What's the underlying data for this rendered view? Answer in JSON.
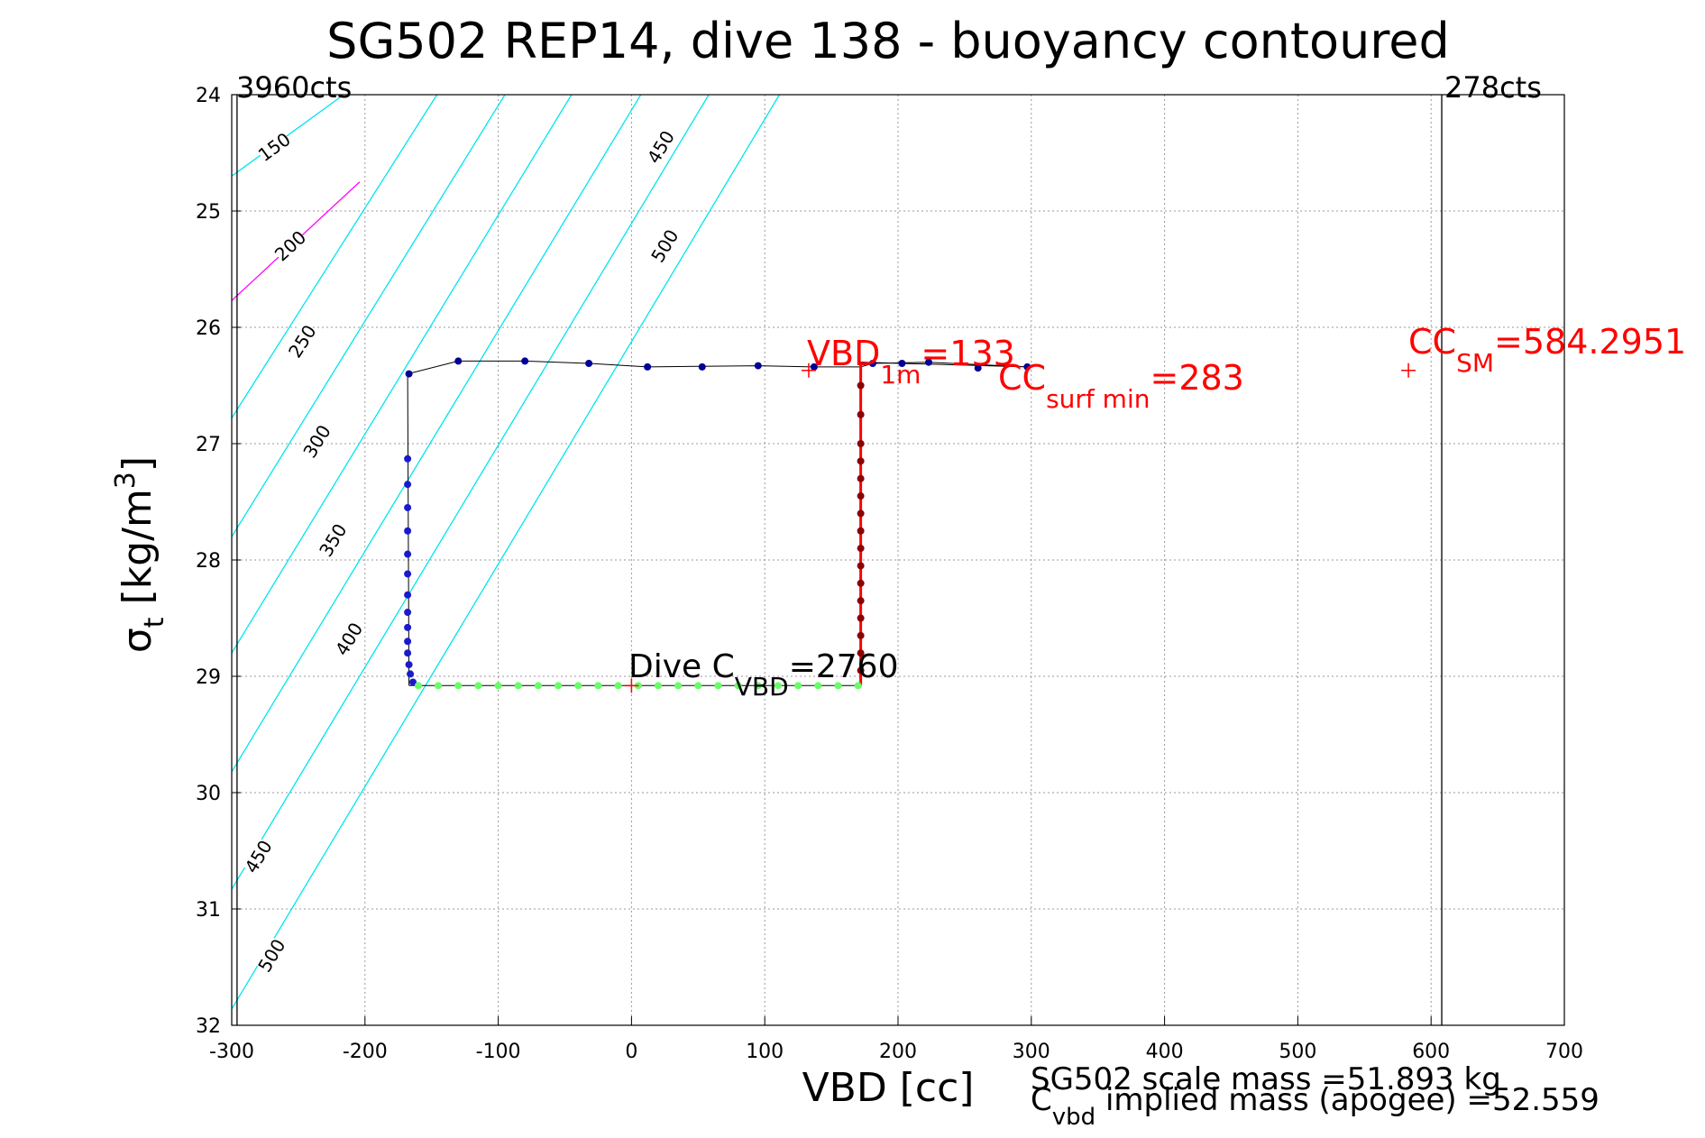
{
  "chart_data": {
    "type": "scatter",
    "title": "SG502 REP14, dive 138 - buoyancy contoured",
    "xlabel": "VBD [cc]",
    "ylabel": {
      "base": "σ",
      "sub": "t",
      "unit_pre": " [kg/m",
      "sup": "3",
      "unit_post": "]"
    },
    "xlim": [
      -300,
      700
    ],
    "ylim": [
      24,
      32
    ],
    "y_reversed": true,
    "grid": true,
    "x_ticks": [
      -300,
      -200,
      -100,
      0,
      100,
      200,
      300,
      400,
      500,
      600,
      700
    ],
    "y_ticks": [
      24,
      25,
      26,
      27,
      28,
      29,
      30,
      31,
      32
    ],
    "vbd_limits": {
      "min": {
        "vbd": -296,
        "label": "3960cts"
      },
      "max": {
        "vbd": 608,
        "label": "278cts"
      }
    },
    "contours": [
      {
        "label": "150",
        "color": "#00e5ee",
        "points": [
          [
            -300,
            24.7
          ],
          [
            -216,
            24.0
          ]
        ],
        "label_at": [
          -268,
          24.45
        ]
      },
      {
        "label": "200",
        "color": "#ff00ff",
        "points": [
          [
            -300,
            25.77
          ],
          [
            -204,
            24.75
          ]
        ],
        "label_at": [
          -256,
          25.3
        ]
      },
      {
        "label": "250",
        "color": "#00e5ee",
        "points": [
          [
            -300,
            26.78
          ],
          [
            -146,
            24.0
          ]
        ],
        "label_at": [
          -247,
          26.12
        ]
      },
      {
        "label": "300",
        "color": "#00e5ee",
        "points": [
          [
            -300,
            27.8
          ],
          [
            -95,
            24.0
          ]
        ],
        "label_at": [
          -236,
          26.98
        ]
      },
      {
        "label": "350",
        "color": "#00e5ee",
        "points": [
          [
            -300,
            28.8
          ],
          [
            -45,
            24.0
          ]
        ],
        "label_at": [
          -224,
          27.83
        ]
      },
      {
        "label": "400",
        "color": "#00e5ee",
        "points": [
          [
            -300,
            29.82
          ],
          [
            7,
            24.0
          ]
        ],
        "label_at": [
          -212,
          28.68
        ]
      },
      {
        "label": "450",
        "color": "#00e5ee",
        "points": [
          [
            -300,
            30.83
          ],
          [
            58,
            24.0
          ]
        ],
        "label_at": [
          22,
          24.45
        ],
        "label_at_2": [
          -280,
          30.55
        ]
      },
      {
        "label": "500",
        "color": "#00e5ee",
        "points": [
          [
            -300,
            31.86
          ],
          [
            111,
            24.0
          ]
        ],
        "label_at": [
          25,
          25.3
        ],
        "label_at_2": [
          -270,
          31.4
        ]
      }
    ],
    "series": [
      {
        "color": "#000099",
        "points": [
          [
            -167,
            26.4
          ],
          [
            -130,
            26.29
          ],
          [
            -80,
            26.29
          ],
          [
            -32,
            26.31
          ],
          [
            12,
            26.34
          ],
          [
            53,
            26.34
          ],
          [
            95,
            26.33
          ],
          [
            137,
            26.34
          ],
          [
            181,
            26.31
          ],
          [
            203,
            26.31
          ],
          [
            223,
            26.3
          ],
          [
            260,
            26.35
          ],
          [
            297,
            26.34
          ]
        ]
      },
      {
        "color": "#8b0000",
        "points": [
          [
            172,
            26.5
          ],
          [
            172,
            26.75
          ],
          [
            172,
            27.0
          ],
          [
            172,
            27.15
          ],
          [
            172,
            27.3
          ],
          [
            172,
            27.45
          ],
          [
            172,
            27.6
          ],
          [
            172,
            27.75
          ],
          [
            172,
            27.9
          ],
          [
            172,
            28.05
          ],
          [
            172,
            28.2
          ],
          [
            172,
            28.35
          ],
          [
            172,
            28.5
          ],
          [
            172,
            28.65
          ],
          [
            172,
            28.8
          ],
          [
            172,
            28.95
          ]
        ]
      },
      {
        "color": "#1a1acc",
        "points": [
          [
            -168,
            27.13
          ],
          [
            -168,
            27.35
          ],
          [
            -168,
            27.55
          ],
          [
            -168,
            27.75
          ],
          [
            -168,
            27.95
          ],
          [
            -168,
            28.12
          ],
          [
            -168,
            28.3
          ],
          [
            -168,
            28.45
          ],
          [
            -168,
            28.58
          ],
          [
            -168,
            28.7
          ],
          [
            -168,
            28.8
          ],
          [
            -167,
            28.9
          ],
          [
            -166,
            28.98
          ],
          [
            -164,
            29.05
          ]
        ]
      },
      {
        "color": "#66ff66",
        "points": [
          [
            -160,
            29.08
          ],
          [
            -145,
            29.08
          ],
          [
            -130,
            29.08
          ],
          [
            -115,
            29.08
          ],
          [
            -100,
            29.08
          ],
          [
            -85,
            29.08
          ],
          [
            -70,
            29.08
          ],
          [
            -55,
            29.08
          ],
          [
            -40,
            29.08
          ],
          [
            -25,
            29.08
          ],
          [
            -10,
            29.08
          ],
          [
            5,
            29.08
          ],
          [
            20,
            29.08
          ],
          [
            35,
            29.08
          ],
          [
            50,
            29.08
          ],
          [
            65,
            29.08
          ],
          [
            80,
            29.08
          ],
          [
            95,
            29.08
          ],
          [
            110,
            29.08
          ],
          [
            125,
            29.08
          ],
          [
            140,
            29.08
          ],
          [
            155,
            29.08
          ],
          [
            170,
            29.08
          ]
        ]
      }
    ],
    "path": [
      [
        -167,
        29.08
      ],
      [
        -168,
        26.4
      ],
      [
        -130,
        26.29
      ],
      [
        -80,
        26.29
      ],
      [
        -32,
        26.31
      ],
      [
        12,
        26.34
      ],
      [
        95,
        26.33
      ],
      [
        137,
        26.34
      ],
      [
        172,
        26.34
      ],
      [
        181,
        26.31
      ],
      [
        223,
        26.3
      ],
      [
        297,
        26.34
      ],
      [
        172,
        26.3
      ],
      [
        172,
        29.08
      ],
      [
        -167,
        29.08
      ]
    ],
    "markers": [
      {
        "vbd": 133,
        "sigma": 26.37,
        "color": "#ff0000"
      },
      {
        "vbd": 0,
        "sigma": 29.08,
        "color": "#ff0000"
      },
      {
        "vbd": 583,
        "sigma": 26.37,
        "color": "#ff0000"
      }
    ],
    "annotations": {
      "vbd_1m": {
        "base": "VBD",
        "sub": "1m",
        "tail": "=133",
        "color": "#ff0000"
      },
      "cc_surf": {
        "base": "CC",
        "sub": "surf min",
        "tail": "=283",
        "color": "#ff0000"
      },
      "cc_sm": {
        "base": "CC",
        "sub": "SM",
        "tail": "=584.2951",
        "color": "#ff0000"
      },
      "dive_c": {
        "base": "Dive C",
        "sub": "VBD",
        "tail": "=2760",
        "color": "#000000"
      }
    },
    "footer": {
      "line1": "SG502 scale mass =51.893 kg",
      "line2_base": "C",
      "line2_sub": "vbd",
      "line2_tail": " implied mass (apogee) =52.559"
    }
  }
}
